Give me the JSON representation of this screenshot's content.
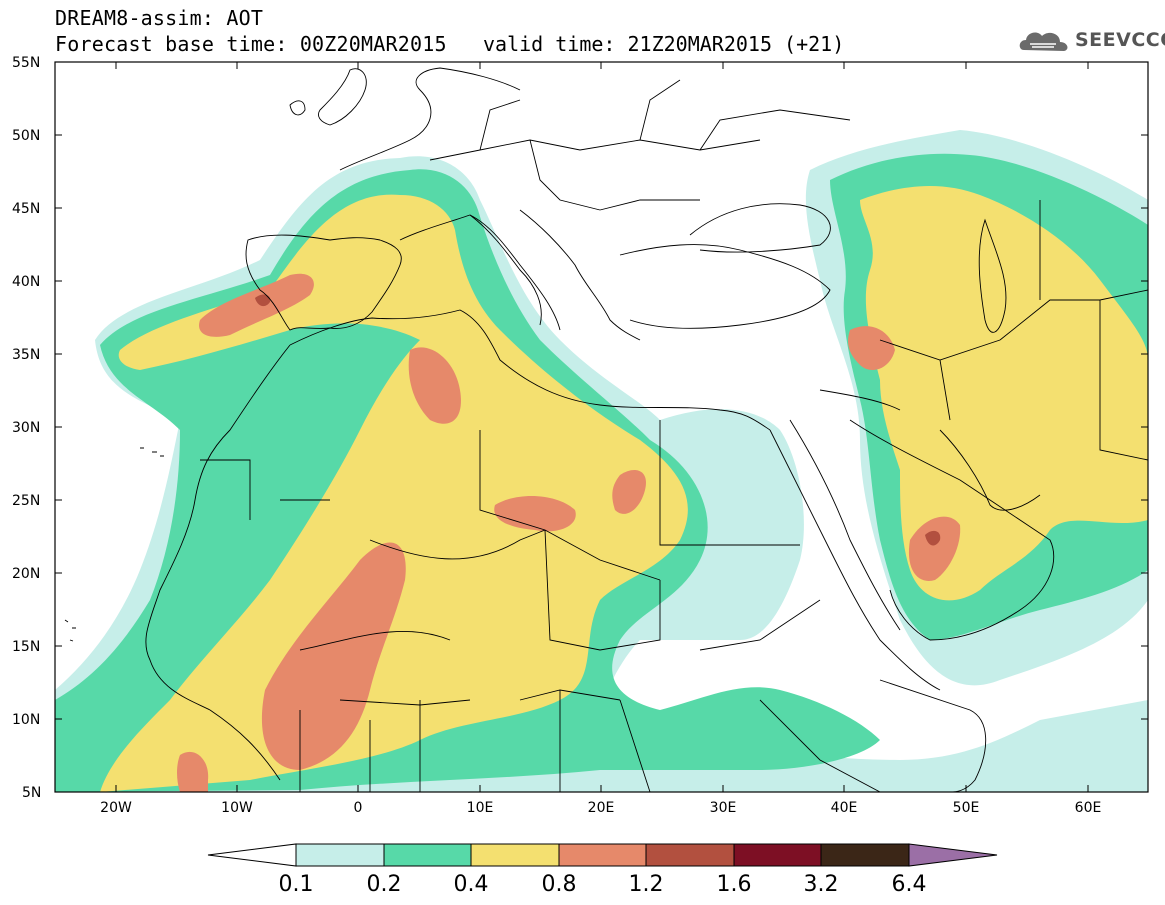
{
  "header": {
    "model_line": "DREAM8-assim: AOT",
    "base_time_line": "Forecast base time: 00Z20MAR2015",
    "valid_time_line": "valid time: 21Z20MAR2015 (+21)"
  },
  "logo": {
    "text": "SEEVCCC",
    "icon": "cloud-icon"
  },
  "map": {
    "lat_labels": [
      "55N",
      "50N",
      "45N",
      "40N",
      "35N",
      "30N",
      "25N",
      "20N",
      "15N",
      "10N",
      "5N"
    ],
    "lon_labels": [
      "20W",
      "10W",
      "0",
      "10E",
      "20E",
      "30E",
      "40E",
      "50E",
      "60E"
    ],
    "lat_range": [
      5,
      55
    ],
    "lon_range": [
      -25,
      65
    ]
  },
  "colorbar": {
    "labels": [
      "0.1",
      "0.2",
      "0.4",
      "0.8",
      "1.2",
      "1.6",
      "3.2",
      "6.4"
    ],
    "colors": [
      "#ffffff",
      "#c6eee9",
      "#57d9a8",
      "#f4e070",
      "#e6896a",
      "#b2503f",
      "#7d0f24",
      "#3b2617",
      "#9b6fa6"
    ]
  },
  "colors": {
    "level_01": "#c6eee9",
    "level_02": "#57d9a8",
    "level_04": "#f4e070",
    "level_08": "#e6896a",
    "level_12": "#b2503f"
  }
}
